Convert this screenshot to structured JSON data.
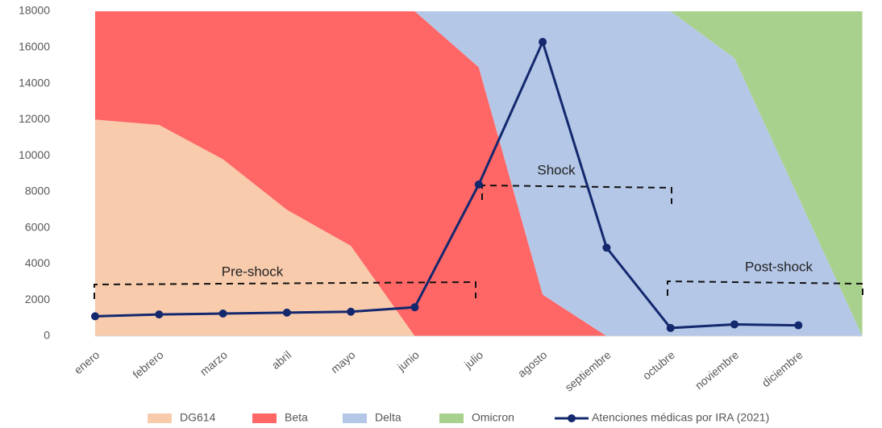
{
  "chart_data": {
    "type": "area",
    "categories": [
      "enero",
      "febrero",
      "marzo",
      "abril",
      "mayo",
      "junio",
      "julio",
      "agosto",
      "septiembre",
      "octubre",
      "noviembre",
      "diciembre",
      null
    ],
    "series": [
      {
        "name": "DG614",
        "type": "area",
        "color": "#f8cbad",
        "values": [
          12000,
          11700,
          9800,
          7000,
          5000,
          0,
          0,
          0,
          0,
          0,
          0,
          0,
          0
        ]
      },
      {
        "name": "Beta",
        "type": "area",
        "color": "#ff6666",
        "values": [
          6000,
          6300,
          8200,
          11000,
          13000,
          18000,
          14900,
          2300,
          0,
          0,
          0,
          0,
          0
        ]
      },
      {
        "name": "Delta",
        "type": "area",
        "color": "#b4c7e7",
        "values": [
          0,
          0,
          0,
          0,
          0,
          0,
          3100,
          15700,
          18000,
          18000,
          15400,
          7700,
          0
        ]
      },
      {
        "name": "Omicron",
        "type": "area",
        "color": "#a9d18e",
        "values": [
          0,
          0,
          0,
          0,
          0,
          0,
          0,
          0,
          0,
          0,
          2600,
          10300,
          18000
        ]
      },
      {
        "name": "Atenciones médicas por IRA (2021)",
        "type": "line",
        "color": "#14286e",
        "values": [
          1100,
          1200,
          1250,
          1300,
          1350,
          1600,
          8400,
          16300,
          4900,
          450,
          650,
          600,
          null
        ]
      }
    ],
    "annotations": [
      "Pre-shock",
      "Shock",
      "Post-shock"
    ],
    "ylim": [
      0,
      18000
    ],
    "yticks": [
      0,
      2000,
      4000,
      6000,
      8000,
      10000,
      12000,
      14000,
      16000,
      18000
    ],
    "grid": false
  }
}
